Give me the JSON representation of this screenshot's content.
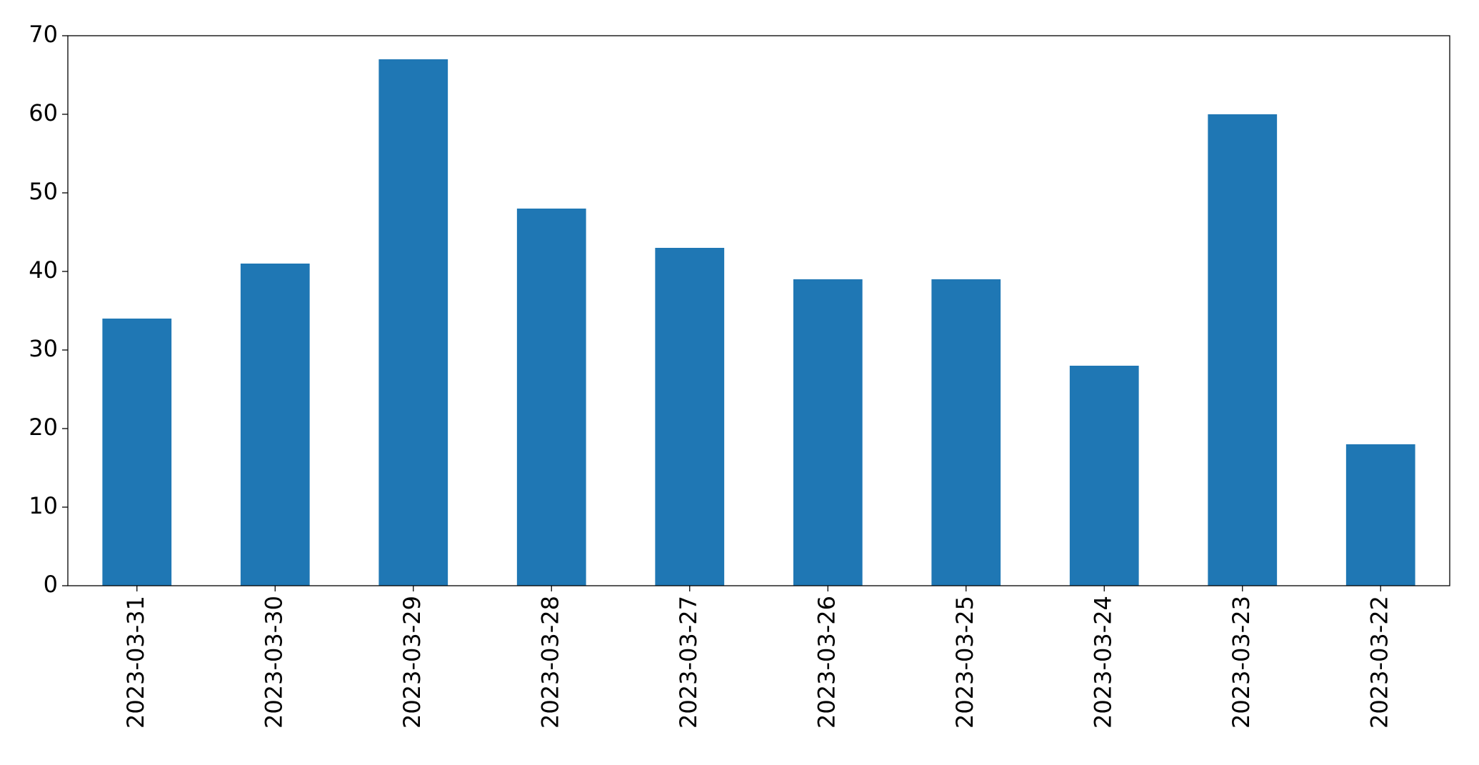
{
  "chart_data": {
    "type": "bar",
    "categories": [
      "2023-03-31",
      "2023-03-30",
      "2023-03-29",
      "2023-03-28",
      "2023-03-27",
      "2023-03-26",
      "2023-03-25",
      "2023-03-24",
      "2023-03-23",
      "2023-03-22"
    ],
    "values": [
      34,
      41,
      67,
      48,
      43,
      39,
      39,
      28,
      60,
      18
    ],
    "color": "#1f77b4",
    "ylim": [
      0,
      70
    ],
    "yticks": [
      0,
      10,
      20,
      30,
      40,
      50,
      60,
      70
    ],
    "grid": false
  }
}
